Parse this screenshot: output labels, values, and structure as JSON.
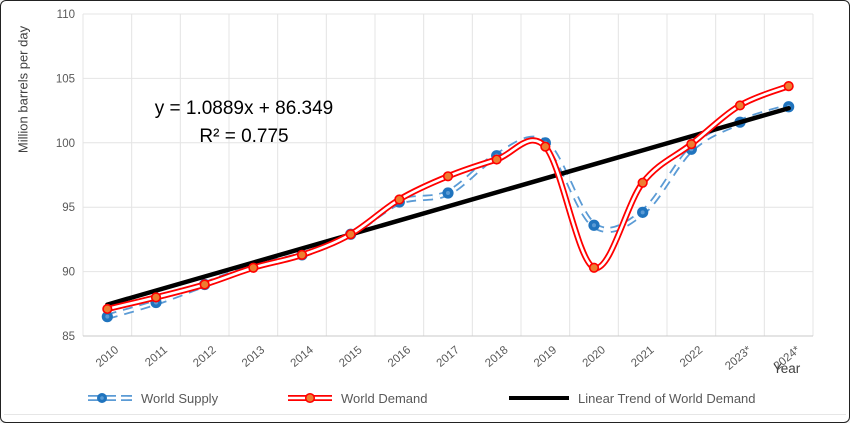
{
  "figure": {
    "y_axis_title": "Million barrels per day",
    "x_axis_title": "Year"
  },
  "chart_data": {
    "type": "line",
    "title": "",
    "xlabel": "Year",
    "ylabel": "Million barrels per day",
    "ylim": [
      85,
      110
    ],
    "yticks": [
      85,
      90,
      95,
      100,
      105,
      110
    ],
    "grid": true,
    "legend_position": "bottom",
    "annotation_line1": "y = 1.0889x + 86.349",
    "annotation_line2": "R² = 0.775",
    "categories": [
      "2010",
      "2011",
      "2012",
      "2013",
      "2014",
      "2015",
      "2016",
      "2017",
      "2018",
      "2019",
      "2020",
      "2021",
      "2022",
      "2023*",
      "2024*"
    ],
    "series": [
      {
        "name": "World Supply",
        "style": "dashed-double-line-with-dots",
        "color": "#5B9BD5",
        "marker_color": "#2074BE",
        "values": [
          86.5,
          87.6,
          89.0,
          90.4,
          91.3,
          92.9,
          95.4,
          96.1,
          99.0,
          100.0,
          93.6,
          94.6,
          99.5,
          101.6,
          102.8
        ]
      },
      {
        "name": "World Demand",
        "style": "solid-double-line-with-dots",
        "color": "#FF0000",
        "marker_color": "#ED7D31",
        "values": [
          87.1,
          88.0,
          89.0,
          90.3,
          91.3,
          92.9,
          95.6,
          97.4,
          98.7,
          99.7,
          90.3,
          96.9,
          99.9,
          102.9,
          104.4
        ]
      },
      {
        "name": "Linear Trend of World Demand",
        "style": "straight-trendline",
        "color": "#000000",
        "trend": {
          "slope": 1.0889,
          "intercept": 86.349,
          "r2": 0.775
        }
      }
    ],
    "colors": {
      "gridline": "#E4E4E4",
      "axis_line": "#C9C9C9",
      "tick_text": "#595959"
    }
  }
}
